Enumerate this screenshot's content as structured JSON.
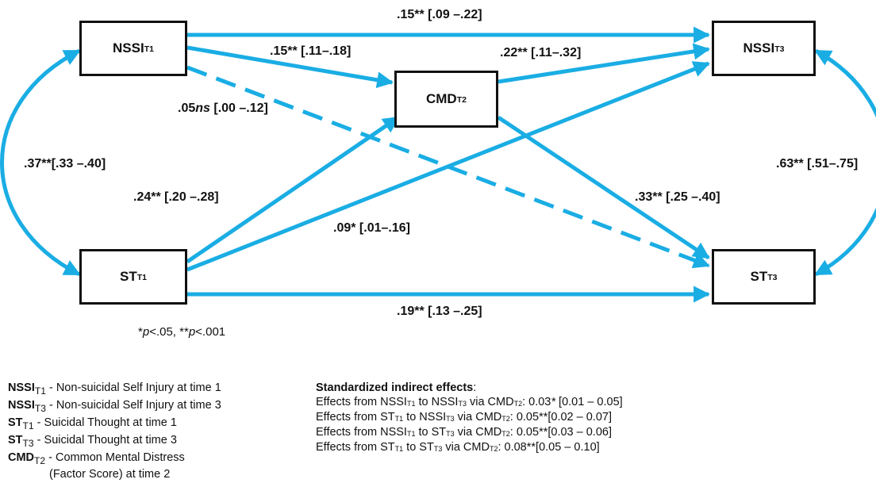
{
  "colors": {
    "arrow": "#1AADE4",
    "box_border": "#111111"
  },
  "nodes": {
    "nssi_t1": {
      "main": "NSSI",
      "sub": "T1"
    },
    "cmd_t2": {
      "main": "CMD",
      "sub": "T2"
    },
    "nssi_t3": {
      "main": "NSSI",
      "sub": "T3"
    },
    "st_t1": {
      "main": "ST",
      "sub": "T1"
    },
    "st_t3": {
      "main": "ST",
      "sub": "T3"
    }
  },
  "paths": {
    "nssi1_nssi3": ".15** [.09 –.22]",
    "nssi1_cmd2": ".15** [.11–.18]",
    "cmd2_nssi3": ".22** [.11–.32]",
    "nssi1_st3_coef": ".05",
    "nssi1_st3_ns": "ns",
    "nssi1_st3_ci": " [.00 –.12]",
    "nssi1_st1": ".37**[.33 –.40]",
    "nssi3_st3": ".63** [.51–.75]",
    "st1_cmd2": ".24** [.20 –.28]",
    "cmd2_st3": ".33** [.25 –.40]",
    "st1_nssi3": ".09* [.01–.16]",
    "st1_st3": ".19** [.13 –.25]"
  },
  "significance": {
    "p1_pre": "*",
    "p1_p": "p",
    "p1_post": "<.05, ",
    "p2_pre": "**",
    "p2_p": "p",
    "p2_post": "<.001"
  },
  "legend": [
    {
      "main": "NSSI",
      "sub": "T1",
      "desc": " - Non-suicidal Self Injury at time 1"
    },
    {
      "main": "NSSI",
      "sub": "T3",
      "desc": " - Non-suicidal Self Injury at time 3"
    },
    {
      "main": "ST",
      "sub": "T1",
      "desc": " - Suicidal Thought at time 1"
    },
    {
      "main": "ST",
      "sub": "T3",
      "desc": " - Suicidal Thought at time 3"
    },
    {
      "main": "CMD",
      "sub": "T2",
      "desc": " - Common Mental Distress"
    }
  ],
  "legend_cont": "(Factor Score) at time 2",
  "indirect": {
    "title": "Standardized indirect effects",
    "title_colon": ":",
    "rows": [
      {
        "a": "Effects from NSSI",
        "a_sub": "T1",
        "b": " to NSSI",
        "b_sub": "T3",
        "c": " via CMD",
        "c_sub": "T2",
        "d": ": 0.03",
        "sig": "*",
        "ci": " [0.01 – 0.05]"
      },
      {
        "a": "Effects from ST",
        "a_sub": "T1",
        "b": " to NSSI",
        "b_sub": "T3",
        "c": " via CMD",
        "c_sub": "T2",
        "d": ": 0.05",
        "sig": "**",
        "ci": "[0.02 – 0.07]"
      },
      {
        "a": "Effects from NSSI",
        "a_sub": "T1",
        "b": " to ST",
        "b_sub": "T3",
        "c": " via CMD",
        "c_sub": "T2",
        "d": ": 0.05",
        "sig": "**",
        "ci": "[0.03 – 0.06]"
      },
      {
        "a": "Effects from ST",
        "a_sub": "T1",
        "b": " to ST",
        "b_sub": "T3",
        "c": " via CMD",
        "c_sub": "T2",
        "d": ": 0.08",
        "sig": "**",
        "ci": "[0.05 – 0.10]"
      }
    ]
  }
}
